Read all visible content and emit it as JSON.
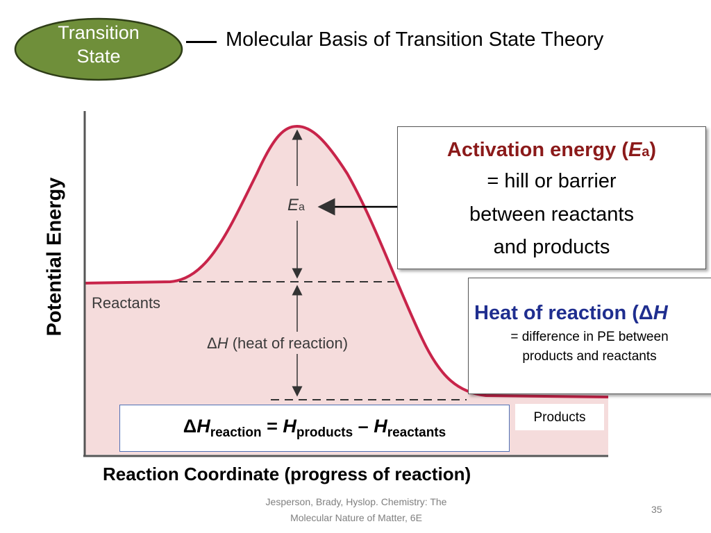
{
  "badge": {
    "line1": "Transition",
    "line2": "State",
    "fill_color": "#6f8f3a"
  },
  "slide_title": "Molecular Basis of Transition State Theory",
  "diagram": {
    "y_axis_label": "Potential Energy",
    "x_axis_label": "Reaction Coordinate (progress of reaction)",
    "reactants_label": "Reactants",
    "ea_label": "E",
    "ea_subscript": "a",
    "dh_symbol": "Δ",
    "dh_italic": "H",
    "dh_rest": " (heat of reaction)",
    "products_label": "Products",
    "curve_color": "#c8244a",
    "fill_color": "#f5dcdc"
  },
  "activation_callout": {
    "title_prefix": "Activation energy (",
    "title_italic": "E",
    "title_sub": "a",
    "title_suffix": ")",
    "line1": "= hill or barrier",
    "line2": "between reactants",
    "line3": "and products",
    "title_color": "#8b1a1a"
  },
  "heat_callout": {
    "title_prefix": "Heat of reaction (",
    "title_symbol": "Δ",
    "title_italic": "H",
    "line1": "= difference in PE between",
    "line2": "products and reactants",
    "title_color": "#1f2e8f"
  },
  "formula": {
    "delta": "Δ",
    "h1": "H",
    "sub1": "reaction",
    "equals": " = ",
    "h2": "H",
    "sub2": "products",
    "minus": " – ",
    "h3": "H",
    "sub3": "reactants"
  },
  "footer": {
    "credit_line1": "Jesperson, Brady, Hyslop. Chemistry: The",
    "credit_line2": "Molecular Nature of Matter, 6E",
    "page_number": "35"
  }
}
